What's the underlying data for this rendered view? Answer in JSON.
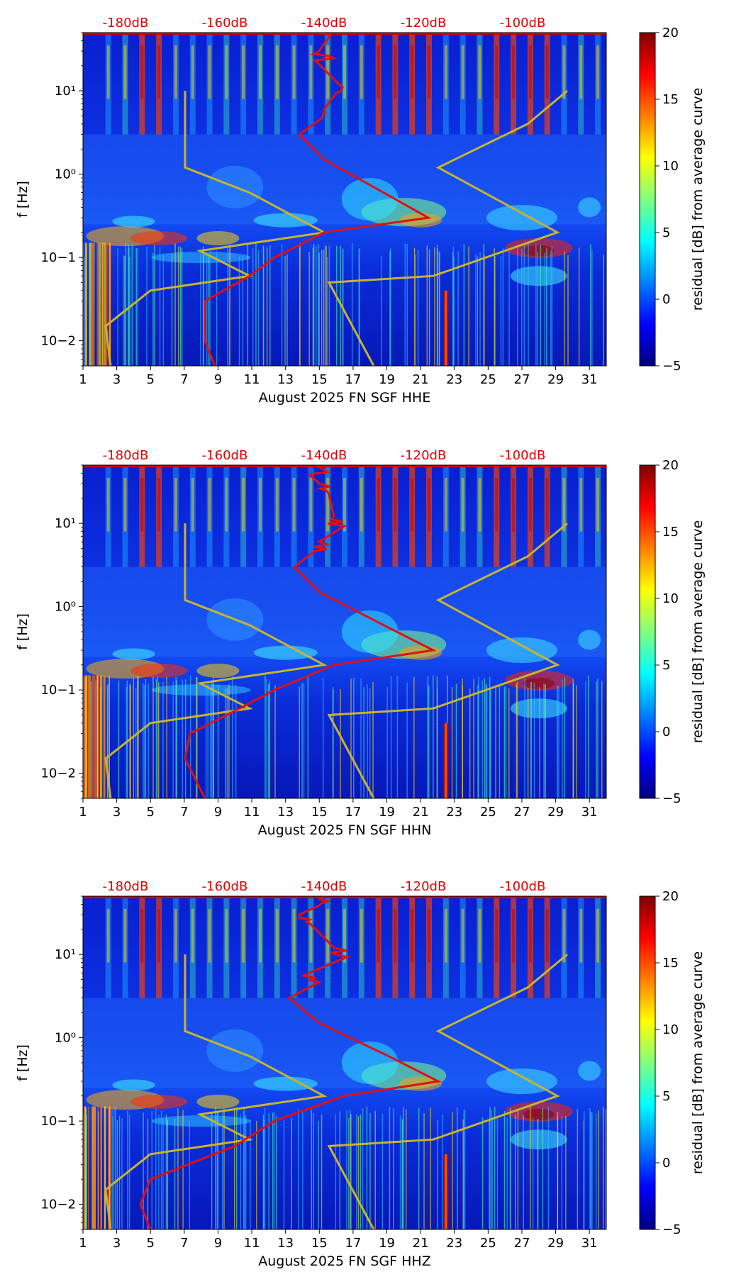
{
  "chart_data": [
    {
      "type": "heatmap",
      "component": "HHE",
      "xlabel": "August 2025 FN SGF  HHE",
      "ylabel": "f [Hz]",
      "x_ticks": [
        "1",
        "3",
        "5",
        "7",
        "9",
        "11",
        "13",
        "15",
        "17",
        "19",
        "21",
        "23",
        "25",
        "27",
        "29",
        "31"
      ],
      "y_ticks": [
        "10−2",
        "10−1",
        "10⁰",
        "10¹"
      ],
      "top_db_labels": [
        "-180dB",
        "-160dB",
        "-140dB",
        "-120dB",
        "-100dB"
      ],
      "colorbar_label": "residual [dB] from average curve",
      "colorbar_ticks": [
        "20",
        "15",
        "10",
        "5",
        "0",
        "−5"
      ],
      "xlim": [
        1,
        32
      ],
      "ylim_hz": [
        0.005,
        50
      ],
      "clim": [
        -5,
        20
      ],
      "red_curve_db": [
        {
          "f": 50,
          "db": -141
        },
        {
          "f": 30,
          "db": -141
        },
        {
          "f": 12,
          "db": -137
        },
        {
          "f": 6,
          "db": -140
        },
        {
          "f": 3,
          "db": -145
        },
        {
          "f": 1.5,
          "db": -140
        },
        {
          "f": 0.6,
          "db": -128
        },
        {
          "f": 0.3,
          "db": -119
        },
        {
          "f": 0.2,
          "db": -140
        },
        {
          "f": 0.1,
          "db": -150
        },
        {
          "f": 0.06,
          "db": -155
        },
        {
          "f": 0.03,
          "db": -164
        },
        {
          "f": 0.01,
          "db": -164
        },
        {
          "f": 0.005,
          "db": -162
        }
      ],
      "nlnm_curve_db": [
        {
          "f": 10,
          "db": -168
        },
        {
          "f": 1.2,
          "db": -168
        },
        {
          "f": 0.6,
          "db": -155
        },
        {
          "f": 0.2,
          "db": -140
        },
        {
          "f": 0.12,
          "db": -165
        },
        {
          "f": 0.06,
          "db": -155
        },
        {
          "f": 0.04,
          "db": -175
        },
        {
          "f": 0.015,
          "db": -184
        },
        {
          "f": 0.005,
          "db": -183
        }
      ],
      "nhnm_curve_db": [
        {
          "f": 10,
          "db": -91
        },
        {
          "f": 4,
          "db": -99
        },
        {
          "f": 1.2,
          "db": -117
        },
        {
          "f": 0.2,
          "db": -93
        },
        {
          "f": 0.06,
          "db": -118
        },
        {
          "f": 0.05,
          "db": -139
        },
        {
          "f": 0.005,
          "db": -130
        }
      ]
    },
    {
      "type": "heatmap",
      "component": "HHN",
      "xlabel": "August 2025 FN SGF  HHN",
      "ylabel": "f [Hz]",
      "x_ticks": [
        "1",
        "3",
        "5",
        "7",
        "9",
        "11",
        "13",
        "15",
        "17",
        "19",
        "21",
        "23",
        "25",
        "27",
        "29",
        "31"
      ],
      "y_ticks": [
        "10−2",
        "10−1",
        "10⁰",
        "10¹"
      ],
      "top_db_labels": [
        "-180dB",
        "-160dB",
        "-140dB",
        "-120dB",
        "-100dB"
      ],
      "colorbar_label": "residual [dB] from average curve",
      "colorbar_ticks": [
        "20",
        "15",
        "10",
        "5",
        "0",
        "−5"
      ],
      "xlim": [
        1,
        32
      ],
      "ylim_hz": [
        0.005,
        50
      ],
      "clim": [
        -5,
        20
      ],
      "red_curve_db": [
        {
          "f": 50,
          "db": -142
        },
        {
          "f": 30,
          "db": -141
        },
        {
          "f": 12,
          "db": -138
        },
        {
          "f": 6,
          "db": -141
        },
        {
          "f": 3,
          "db": -146
        },
        {
          "f": 1.5,
          "db": -141
        },
        {
          "f": 0.6,
          "db": -128
        },
        {
          "f": 0.3,
          "db": -118
        },
        {
          "f": 0.2,
          "db": -138
        },
        {
          "f": 0.1,
          "db": -150
        },
        {
          "f": 0.06,
          "db": -157
        },
        {
          "f": 0.03,
          "db": -167
        },
        {
          "f": 0.015,
          "db": -168
        },
        {
          "f": 0.005,
          "db": -164
        }
      ],
      "nlnm_curve_db": [
        {
          "f": 10,
          "db": -168
        },
        {
          "f": 1.2,
          "db": -168
        },
        {
          "f": 0.6,
          "db": -155
        },
        {
          "f": 0.2,
          "db": -140
        },
        {
          "f": 0.12,
          "db": -165
        },
        {
          "f": 0.06,
          "db": -155
        },
        {
          "f": 0.04,
          "db": -175
        },
        {
          "f": 0.015,
          "db": -184
        },
        {
          "f": 0.005,
          "db": -183
        }
      ],
      "nhnm_curve_db": [
        {
          "f": 10,
          "db": -91
        },
        {
          "f": 4,
          "db": -99
        },
        {
          "f": 1.2,
          "db": -117
        },
        {
          "f": 0.2,
          "db": -93
        },
        {
          "f": 0.06,
          "db": -118
        },
        {
          "f": 0.05,
          "db": -139
        },
        {
          "f": 0.005,
          "db": -130
        }
      ]
    },
    {
      "type": "heatmap",
      "component": "HHZ",
      "xlabel": "August 2025 FN SGF  HHZ",
      "ylabel": "f [Hz]",
      "x_ticks": [
        "1",
        "3",
        "5",
        "7",
        "9",
        "11",
        "13",
        "15",
        "17",
        "19",
        "21",
        "23",
        "25",
        "27",
        "29",
        "31"
      ],
      "y_ticks": [
        "10−2",
        "10−1",
        "10⁰",
        "10¹"
      ],
      "top_db_labels": [
        "-180dB",
        "-160dB",
        "-140dB",
        "-120dB",
        "-100dB"
      ],
      "colorbar_label": "residual [dB] from average curve",
      "colorbar_ticks": [
        "20",
        "15",
        "10",
        "5",
        "0",
        "−5"
      ],
      "xlim": [
        1,
        32
      ],
      "ylim_hz": [
        0.005,
        50
      ],
      "clim": [
        -5,
        20
      ],
      "red_curve_db": [
        {
          "f": 50,
          "db": -140
        },
        {
          "f": 30,
          "db": -145
        },
        {
          "f": 12,
          "db": -138
        },
        {
          "f": 6,
          "db": -143
        },
        {
          "f": 3,
          "db": -147
        },
        {
          "f": 1.5,
          "db": -141
        },
        {
          "f": 0.6,
          "db": -127
        },
        {
          "f": 0.3,
          "db": -117
        },
        {
          "f": 0.2,
          "db": -136
        },
        {
          "f": 0.1,
          "db": -150
        },
        {
          "f": 0.05,
          "db": -158
        },
        {
          "f": 0.02,
          "db": -175
        },
        {
          "f": 0.01,
          "db": -177
        },
        {
          "f": 0.005,
          "db": -175
        }
      ],
      "nlnm_curve_db": [
        {
          "f": 10,
          "db": -168
        },
        {
          "f": 1.2,
          "db": -168
        },
        {
          "f": 0.6,
          "db": -155
        },
        {
          "f": 0.2,
          "db": -140
        },
        {
          "f": 0.12,
          "db": -165
        },
        {
          "f": 0.06,
          "db": -155
        },
        {
          "f": 0.04,
          "db": -175
        },
        {
          "f": 0.015,
          "db": -184
        },
        {
          "f": 0.005,
          "db": -183
        }
      ],
      "nhnm_curve_db": [
        {
          "f": 10,
          "db": -91
        },
        {
          "f": 4,
          "db": -99
        },
        {
          "f": 1.2,
          "db": -117
        },
        {
          "f": 0.2,
          "db": -93
        },
        {
          "f": 0.06,
          "db": -118
        },
        {
          "f": 0.05,
          "db": -139
        },
        {
          "f": 0.005,
          "db": -130
        }
      ]
    }
  ],
  "colors": {
    "red_curve": "#e01010",
    "noise_model": "#c8b42c",
    "db_label": "#e00000",
    "colormap": [
      "#00007f",
      "#0000ff",
      "#007fff",
      "#00ffff",
      "#7fff7f",
      "#ffff00",
      "#ff7f00",
      "#ff0000",
      "#7f0000"
    ]
  }
}
